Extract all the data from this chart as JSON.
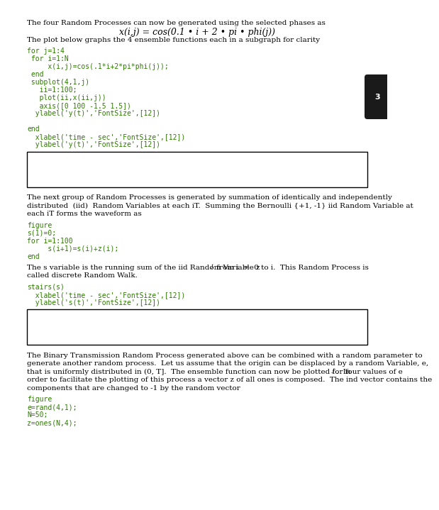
{
  "bg_color": "#ffffff",
  "text_color": "#000000",
  "code_color": "#2e7b00",
  "title_text1": "The four Random Processes can now be generated using the selected phases as",
  "formula": "x(i,j) = cos(0.1 • i + 2 • pi • phi(j))",
  "title_text2": "The plot below graphs the 4 ensemble functions each in a subgraph for clarity",
  "section2_text1": "The next group of Random Processes is generated by summation of identically and independently",
  "section2_text2": "distributed  (iid)  Random Variables at each iT.  Summing the Bernoulli {+1, -1} iid Random Variable at",
  "section2_text3": "each iT forms the waveform as",
  "section3_text2": "called discrete Random Walk.",
  "section4_text1": "The Binary Transmission Random Process generated above can be combined with a random parameter to",
  "section4_text2": "generate another random process.  Let us assume that the origin can be displaced by a random Variable, e,",
  "section4_text3": "that is uniformly distributed in (0, T].  The ensemble function can now be plotted for four values of e",
  "section4_text4": "order to facilitate the plotting of this process a vector z of all ones is composed.  The ind vector contains the",
  "section4_text5": "components that are changed to -1 by the random vector",
  "code_lines1": [
    "for j=1:4",
    " for i=1:N",
    "     x(i,j)=cos(.1*i+2*pi*phi(j));",
    " end",
    " subplot(4,1,j)",
    "   ii=1:100;",
    "   plot(ii,x(ii,j))",
    "   axis([0 100 -1.5 1.5])",
    "  ylabel('y(t)','FontSize',[12])",
    "",
    "end",
    "  xlabel('time - sec','FontSize',[12])",
    "  ylabel('y(t)','FontSize',[12])"
  ],
  "code_lines2": [
    "figure",
    "s(1)=0;",
    "for i=1:100",
    "     s(i+1)=s(i)+z(i);",
    "end"
  ],
  "code_lines3": [
    "stairs(s)",
    "  xlabel('time - sec','FontSize',[12])",
    "  ylabel('s(t)','FontSize',[12])"
  ],
  "code_lines4": [
    "figure",
    "e=rand(4,1);",
    "N=50;",
    "z=ones(N,4);"
  ]
}
